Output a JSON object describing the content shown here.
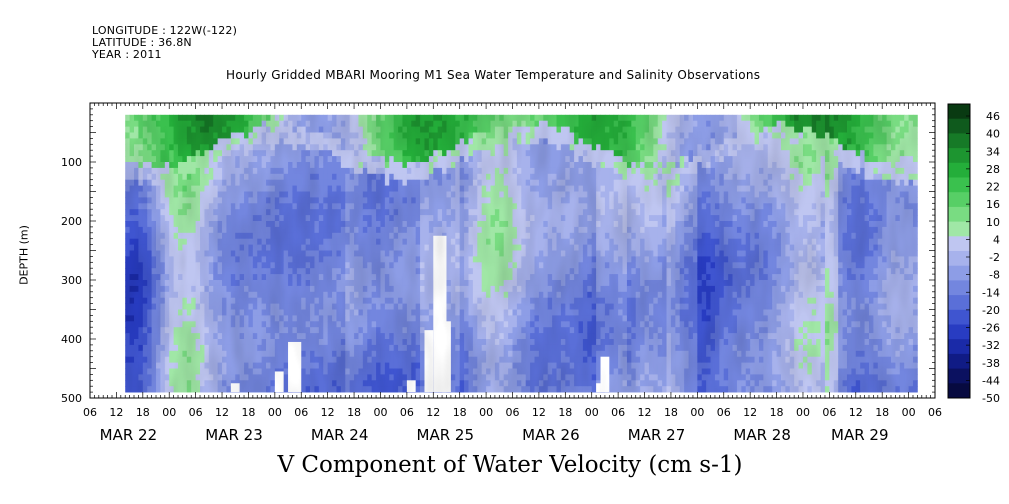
{
  "header": {
    "longitude": "LONGITUDE : 122W(-122)",
    "latitude": "LATITUDE : 36.8N",
    "year": "YEAR : 2011"
  },
  "chart_data": {
    "type": "heatmap",
    "title": "Hourly Gridded MBARI Mooring M1 Sea Water Temperature and Salinity Observations",
    "xlabel": "V Component of Water Velocity (cm s-1)",
    "ylabel": "DEPTH (m)",
    "x_range_hours": [
      -18,
      174
    ],
    "x_hour_ticks": [
      "06",
      "12",
      "18",
      "00",
      "06",
      "12",
      "18",
      "00",
      "06",
      "12",
      "18",
      "00",
      "06",
      "12",
      "18",
      "00",
      "06",
      "12",
      "18",
      "00",
      "06",
      "12",
      "18",
      "00",
      "06",
      "12",
      "18",
      "00",
      "06",
      "12",
      "18",
      "00",
      "06"
    ],
    "x_date_labels": [
      "MAR 22",
      "MAR 23",
      "MAR 24",
      "MAR 25",
      "MAR 26",
      "MAR 27",
      "MAR 28",
      "MAR 29"
    ],
    "ylim": [
      500,
      0
    ],
    "y_ticks": [
      100,
      200,
      300,
      400,
      500
    ],
    "data_extent": {
      "x_hours": [
        -10,
        170
      ],
      "depth": [
        20,
        490
      ]
    },
    "colorbar": {
      "labels": [
        "46",
        "40",
        "34",
        "28",
        "22",
        "16",
        "10",
        "4",
        "-2",
        "-8",
        "-14",
        "-20",
        "-26",
        "-32",
        "-38",
        "-44",
        "-50"
      ],
      "colors": [
        "#093a12",
        "#0f5a1d",
        "#167a27",
        "#1d9530",
        "#24ae3a",
        "#3ac14e",
        "#57cf66",
        "#79dc82",
        "#a0e7a6",
        "#bfc6f1",
        "#a7b2ec",
        "#8d9de6",
        "#7386df",
        "#5a6fd8",
        "#3f55d0",
        "#283cc2",
        "#1a2aa8",
        "#101b85",
        "#0b1160",
        "#070a40"
      ]
    },
    "features": {
      "near_surface_band": "positive northward velocity 20-46 cm s-1 in top ~100 m",
      "below_100m": "mostly weak southward flow -2 to -20 cm s-1 with northward streaks"
    }
  }
}
